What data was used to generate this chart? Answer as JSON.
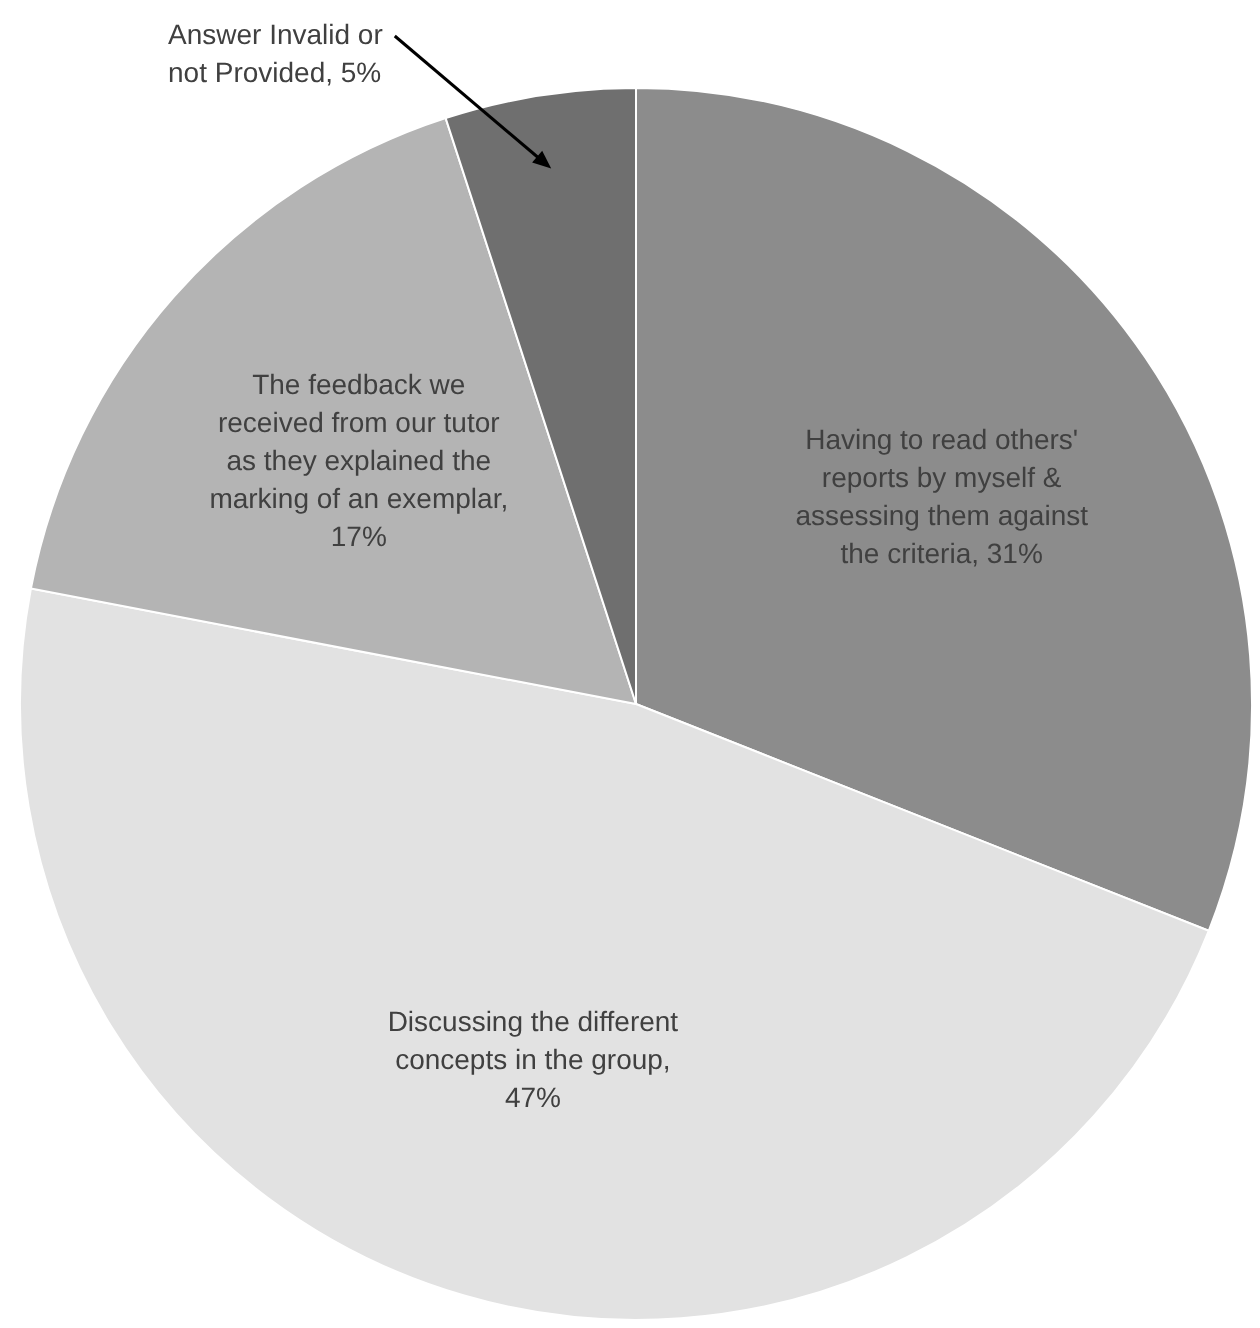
{
  "chart_data": {
    "type": "pie",
    "categories": [
      "Having to read others' reports by myself & assessing them against the criteria, 31%",
      "Discussing the different concepts in the group, 47%",
      "The feedback we received from our tutor as they explained the marking of an exemplar, 17%",
      "Answer Invalid or not Provided, 5%"
    ],
    "values": [
      31,
      47,
      17,
      5
    ],
    "colors": [
      "#8c8c8c",
      "#e2e2e2",
      "#b4b4b4",
      "#6f6f6f"
    ]
  }
}
